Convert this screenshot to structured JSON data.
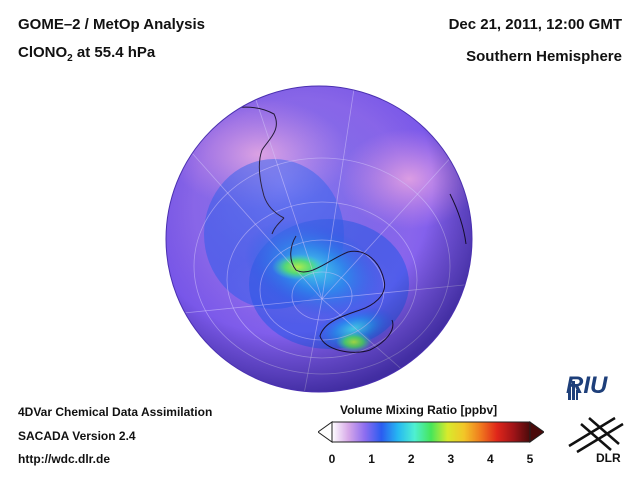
{
  "header": {
    "title_line1": "GOME–2 / MetOp Analysis",
    "species_prefix": "ClONO",
    "species_sub": "2",
    "species_suffix": " at 55.4 hPa",
    "datetime": "Dec 21, 2011, 12:00 GMT",
    "region": "Southern Hemisphere"
  },
  "footer": {
    "line1": "4DVar Chemical Data Assimilation",
    "line2": "SACADA Version 2.4",
    "line3": "http://wdc.dlr.de"
  },
  "colorbar": {
    "title": "Volume Mixing Ratio [ppbv]",
    "ticks": [
      "0",
      "1",
      "2",
      "3",
      "4",
      "5"
    ],
    "min": 0,
    "max": 5,
    "colors": [
      "#ffffff",
      "#d6a8e8",
      "#8c6df0",
      "#2a5cf0",
      "#26b8f2",
      "#4ef0d2",
      "#46e65a",
      "#d8ea2c",
      "#f2c628",
      "#f07a1e",
      "#e0261a",
      "#a01418",
      "#4a0a0a"
    ]
  },
  "logos": {
    "riu": "RIU",
    "dlr": "DLR"
  },
  "colors": {
    "background": "#ffffff",
    "globe_base": "#8060f0",
    "polar_high": "#3ee0e0",
    "peak": "#4ee84a"
  }
}
